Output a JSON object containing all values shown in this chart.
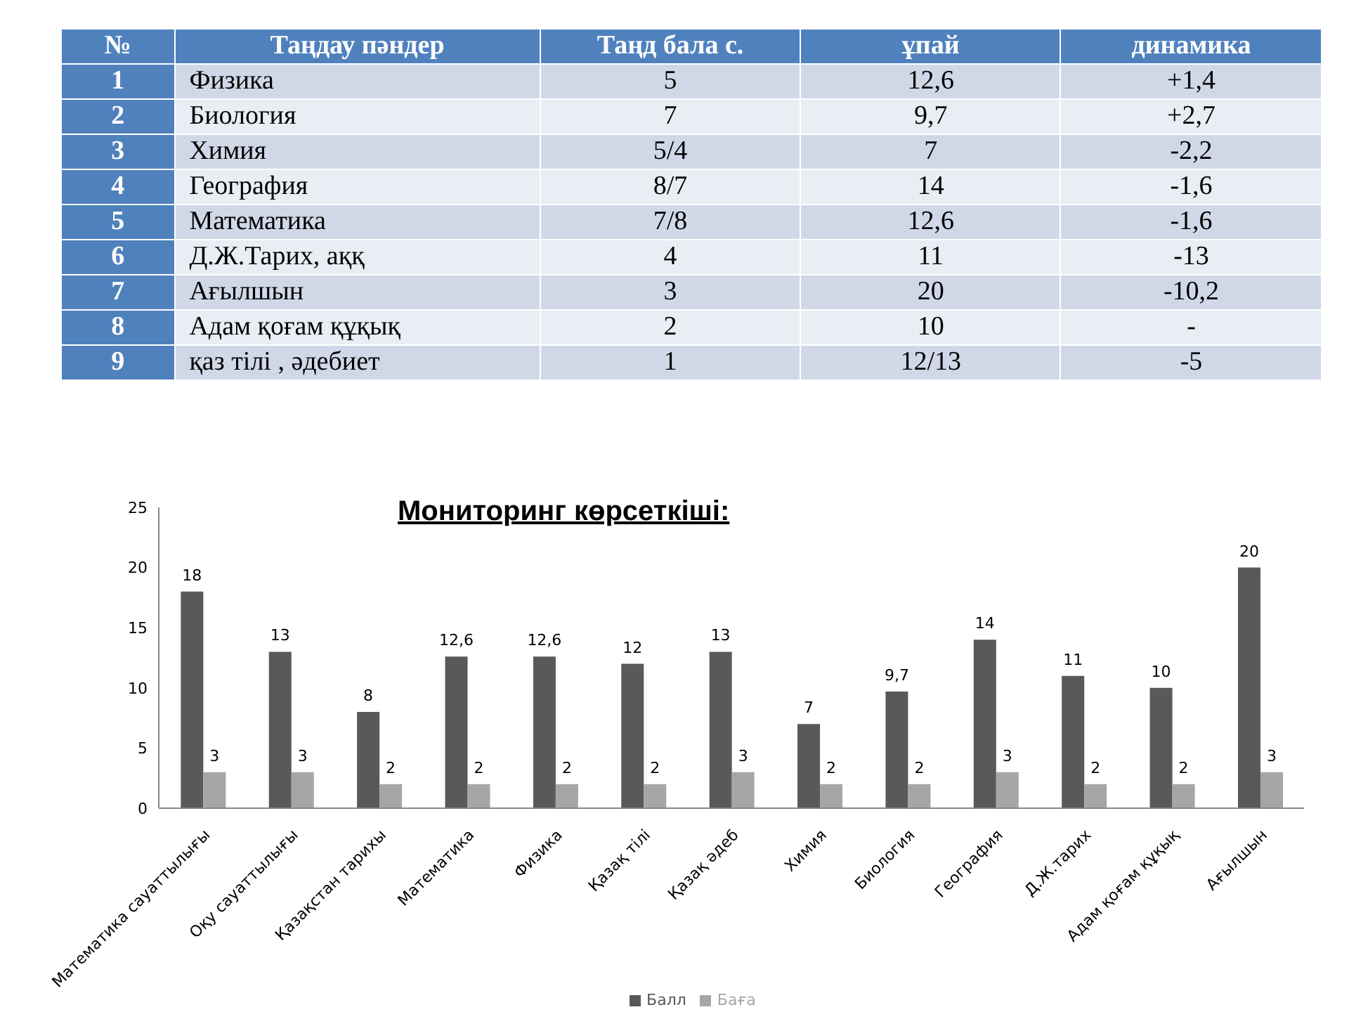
{
  "chart_data": [
    {
      "type": "heatmap",
      "ylabel": "№",
      "categories": [
        "Таңдау пәндер",
        "Таңд бала с.",
        "ұпай",
        "динамика"
      ],
      "y_categories": [
        "1",
        "2",
        "3",
        "4",
        "5",
        "6",
        "7",
        "8",
        "9"
      ],
      "cells": [
        [
          null,
          null,
          null,
          null
        ],
        [
          null,
          null,
          null,
          null
        ],
        [
          null,
          null,
          null,
          null
        ],
        [
          null,
          null,
          null,
          null
        ],
        [
          null,
          null,
          null,
          null
        ],
        [
          null,
          null,
          null,
          null
        ],
        [
          null,
          null,
          null,
          null
        ],
        [
          null,
          null,
          null,
          null
        ],
        [
          null,
          null,
          null,
          null
        ]
      ],
      "cell_labels": [
        [
          "Физика",
          "5",
          "12,6",
          "+1,4"
        ],
        [
          "Биология",
          "7",
          "9,7",
          "+2,7"
        ],
        [
          "Химия",
          "5/4",
          "7",
          "-2,2"
        ],
        [
          "География",
          "8/7",
          "14",
          "-1,6"
        ],
        [
          "Математика",
          "7/8",
          "12,6",
          "-1,6"
        ],
        [
          "Д.Ж.Тарих,  аққ",
          "4",
          "11",
          "-13"
        ],
        [
          "Ағылшын",
          "3",
          "20",
          "-10,2"
        ],
        [
          "Адам қоғам құқық",
          "2",
          "10",
          "-"
        ],
        [
          "қаз тілі , әдебиет",
          "1",
          "12/13",
          "-5"
        ]
      ]
    },
    {
      "type": "bar",
      "title": "Мониторинг көрсеткіші:",
      "categories": [
        "Математика сауаттылығы",
        "Оқу сауаттылығы",
        "Қазақстан тарихы",
        "Математика",
        "Физика",
        "Қазақ тілі",
        "Қазақ әдеб",
        "Химия",
        "Биология",
        "География",
        "Д.Ж.тарих",
        "Адам қоғам құқық",
        "Ағылшын"
      ],
      "series": [
        {
          "name": "Балл",
          "color": "#595959",
          "values": [
            18,
            13,
            8,
            12.6,
            12.6,
            12,
            13,
            7,
            9.7,
            14,
            11,
            10,
            20
          ],
          "value_labels": [
            "18",
            "13",
            "8",
            "12,6",
            "12,6",
            "12",
            "13",
            "7",
            "9,7",
            "14",
            "11",
            "10",
            "20"
          ]
        },
        {
          "name": "Баға",
          "color": "#a6a6a6",
          "values": [
            3,
            3,
            2,
            2,
            2,
            2,
            3,
            2,
            2,
            3,
            2,
            2,
            3
          ],
          "value_labels": [
            "3",
            "3",
            "2",
            "2",
            "2",
            "2",
            "3",
            "2",
            "2",
            "3",
            "2",
            "2",
            "3"
          ]
        }
      ],
      "ylim": [
        0,
        25
      ],
      "yticks": [
        0,
        5,
        10,
        15,
        20,
        25
      ],
      "grid": false,
      "legend": "bottom"
    }
  ]
}
